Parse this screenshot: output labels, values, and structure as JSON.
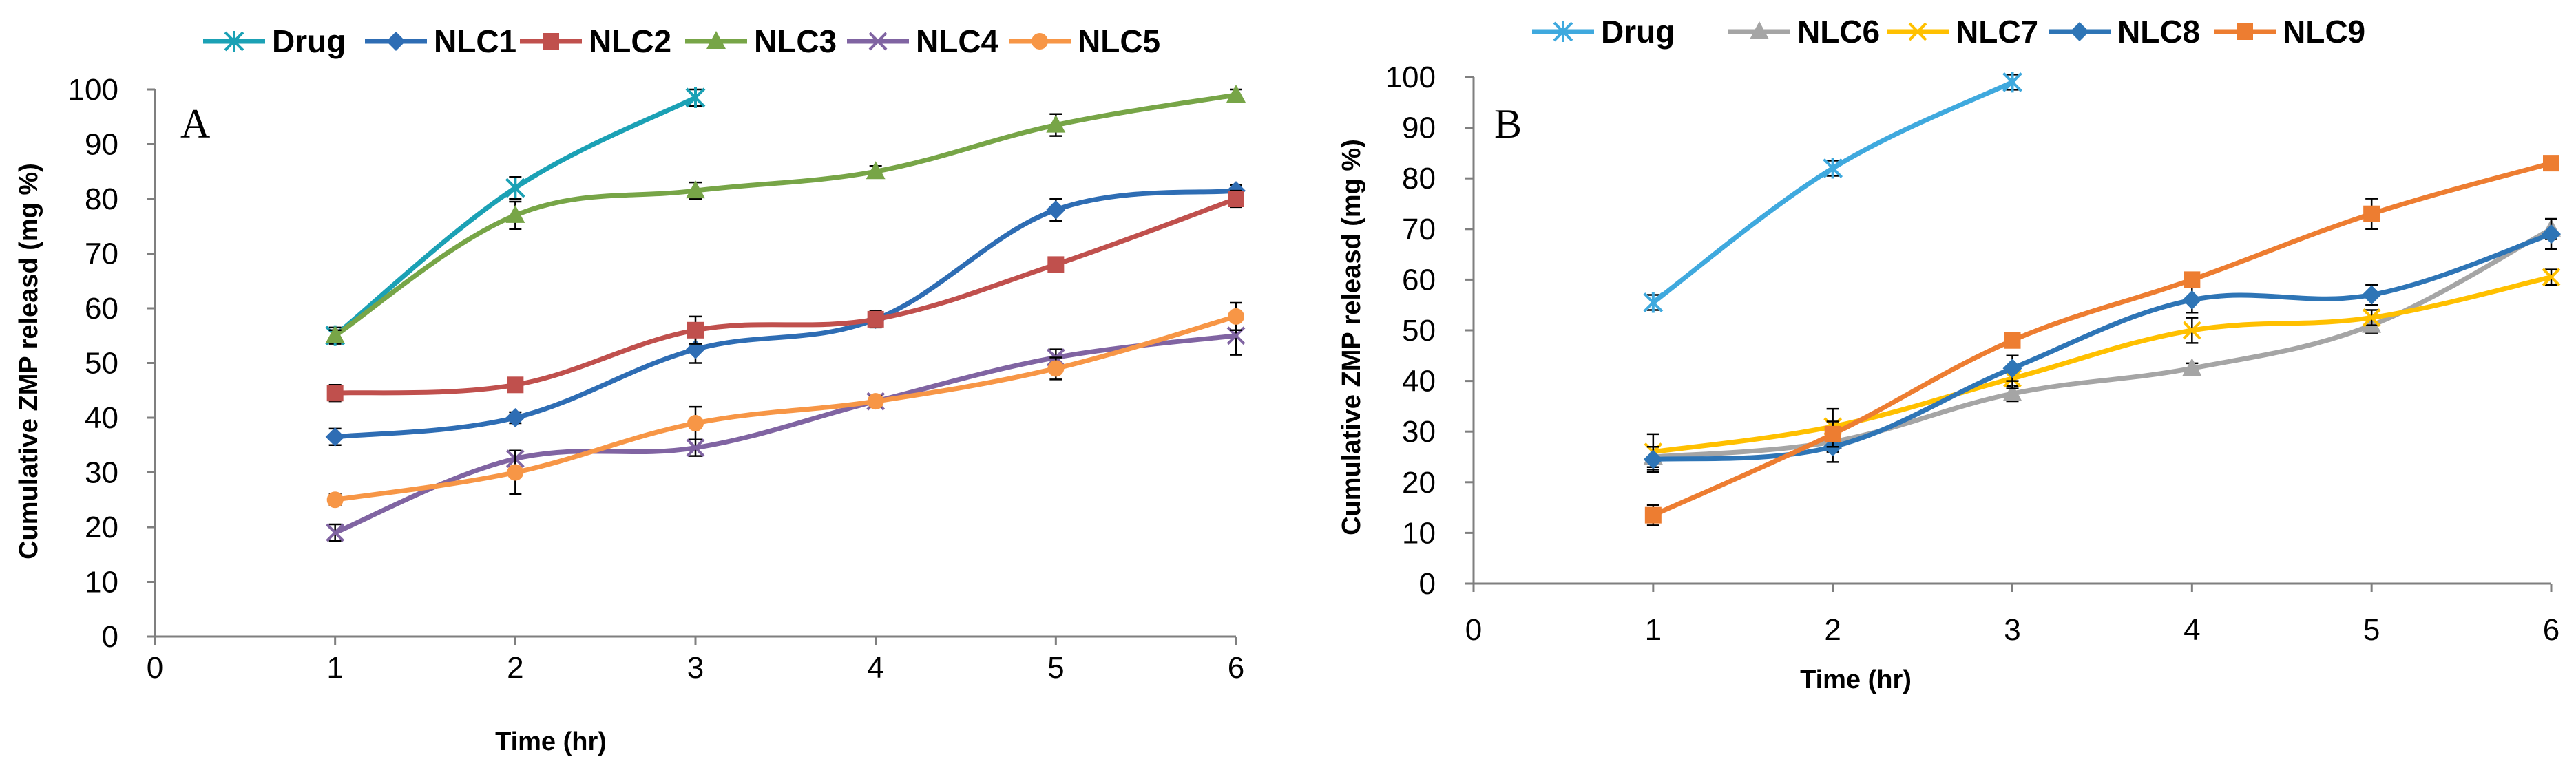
{
  "chart_data": [
    {
      "type": "line",
      "panel_label": "A",
      "title": "",
      "xlabel": "Time (hr)",
      "ylabel": "Cumulative ZMP releasd (mg %)",
      "xlim": [
        0,
        6
      ],
      "ylim": [
        0,
        100
      ],
      "xticks": [
        0,
        1,
        2,
        3,
        4,
        5,
        6
      ],
      "yticks": [
        0,
        10,
        20,
        30,
        40,
        50,
        60,
        70,
        80,
        90,
        100
      ],
      "legend_position": "top",
      "series": [
        {
          "name": "Drug",
          "color": "#1BA1B5",
          "marker": "asterisk",
          "x": [
            1,
            2,
            3
          ],
          "values": [
            55,
            82,
            98.5
          ],
          "errors": [
            1.5,
            2,
            1.5
          ]
        },
        {
          "name": "NLC1",
          "color": "#2E6DB4",
          "marker": "diamond",
          "x": [
            1,
            2,
            3,
            4,
            5,
            6
          ],
          "values": [
            36.5,
            40,
            52.5,
            58,
            78,
            81.5
          ],
          "errors": [
            1.5,
            1,
            2.5,
            1,
            2,
            1
          ]
        },
        {
          "name": "NLC2",
          "color": "#C0504D",
          "marker": "square",
          "x": [
            1,
            2,
            3,
            4,
            5,
            6
          ],
          "values": [
            44.5,
            46,
            56,
            58,
            68,
            80
          ],
          "errors": [
            1.5,
            1,
            2.5,
            1.5,
            1,
            1.5
          ]
        },
        {
          "name": "NLC3",
          "color": "#77A547",
          "marker": "triangle",
          "x": [
            1,
            2,
            3,
            4,
            5,
            6
          ],
          "values": [
            55,
            77,
            81.5,
            85,
            93.5,
            99
          ],
          "errors": [
            1,
            2.5,
            1.5,
            1,
            2,
            1
          ]
        },
        {
          "name": "NLC4",
          "color": "#8064A2",
          "marker": "x",
          "x": [
            1,
            2,
            3,
            4,
            5,
            6
          ],
          "values": [
            19,
            32.5,
            34.5,
            43,
            51,
            55
          ],
          "errors": [
            1.5,
            1.5,
            1.5,
            1,
            1.5,
            3.5
          ]
        },
        {
          "name": "NLC5",
          "color": "#F79646",
          "marker": "circle",
          "x": [
            1,
            2,
            3,
            4,
            5,
            6
          ],
          "values": [
            25,
            30,
            39,
            43,
            49,
            58.5
          ],
          "errors": [
            1,
            4,
            3,
            1,
            2,
            2.5
          ]
        }
      ]
    },
    {
      "type": "line",
      "panel_label": "B",
      "title": "",
      "xlabel": "Time (hr)",
      "ylabel": "Cumulative ZMP releasd (mg %)",
      "xlim": [
        0,
        6
      ],
      "ylim": [
        0,
        100
      ],
      "xticks": [
        0,
        1,
        2,
        3,
        4,
        5,
        6
      ],
      "yticks": [
        0,
        10,
        20,
        30,
        40,
        50,
        60,
        70,
        80,
        90,
        100
      ],
      "legend_position": "top",
      "series": [
        {
          "name": "Drug",
          "color": "#3FA9DE",
          "marker": "asterisk",
          "x": [
            1,
            2,
            3
          ],
          "values": [
            55.5,
            82,
            99
          ],
          "errors": [
            1.5,
            1.5,
            1.5
          ]
        },
        {
          "name": "NLC6",
          "color": "#A5A5A5",
          "marker": "triangle",
          "x": [
            1,
            2,
            3,
            4,
            5,
            6
          ],
          "values": [
            25,
            28,
            37.5,
            42.5,
            51,
            70
          ],
          "errors": [
            2,
            2,
            1.5,
            1,
            1.5,
            2
          ]
        },
        {
          "name": "NLC7",
          "color": "#FFC000",
          "marker": "x",
          "x": [
            1,
            2,
            3,
            4,
            5,
            6
          ],
          "values": [
            26,
            31,
            40.5,
            50,
            52.5,
            60.5
          ],
          "errors": [
            3.5,
            3.5,
            2,
            2.5,
            1.5,
            1.5
          ]
        },
        {
          "name": "NLC8",
          "color": "#2E75B6",
          "marker": "diamond",
          "x": [
            1,
            2,
            3,
            4,
            5,
            6
          ],
          "values": [
            24.5,
            27,
            42.5,
            56,
            57,
            69
          ],
          "errors": [
            2.5,
            3,
            2.5,
            2.5,
            2,
            3
          ]
        },
        {
          "name": "NLC9",
          "color": "#ED7D31",
          "marker": "square",
          "x": [
            1,
            2,
            3,
            4,
            5,
            6
          ],
          "values": [
            13.5,
            29.5,
            48,
            60,
            73,
            83
          ],
          "errors": [
            2,
            2.5,
            1,
            1,
            3,
            1
          ]
        }
      ]
    }
  ]
}
